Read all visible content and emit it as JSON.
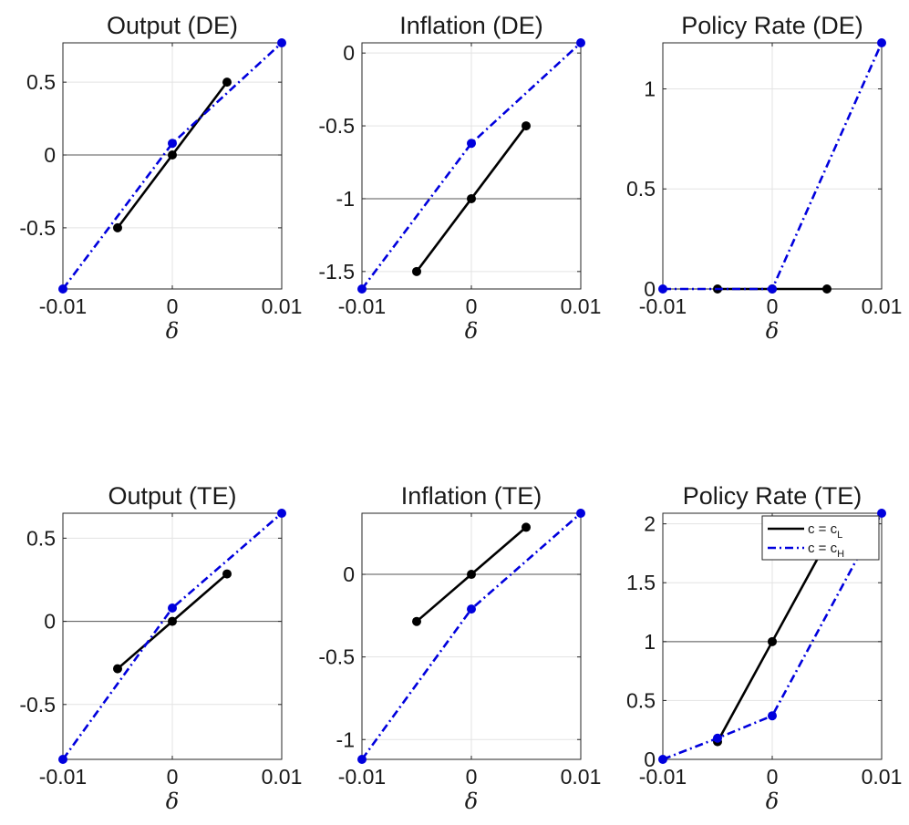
{
  "chart_data": [
    {
      "type": "line",
      "title": "Output (DE)",
      "xlabel": "δ",
      "xlim": [
        -0.01,
        0.01
      ],
      "xticks": [
        -0.01,
        0,
        0.01
      ],
      "xtick_labels": [
        "-0.01",
        "0",
        "0.01"
      ],
      "ylim": [
        -0.92,
        0.77
      ],
      "yticks": [
        -0.5,
        0,
        0.5
      ],
      "ytick_labels": [
        "-0.5",
        "0",
        "0.5"
      ],
      "ref_line": 0,
      "grid": true,
      "series": [
        {
          "name": "c = c_L",
          "color": "#000000",
          "style": "solid",
          "x": [
            -0.005,
            0,
            0.005
          ],
          "y": [
            -0.5,
            0,
            0.5
          ]
        },
        {
          "name": "c = c_H",
          "color": "#0000dd",
          "style": "dashdot",
          "x": [
            -0.01,
            0,
            0.01
          ],
          "y": [
            -0.92,
            0.08,
            0.77
          ]
        }
      ]
    },
    {
      "type": "line",
      "title": "Inflation (DE)",
      "xlabel": "δ",
      "xlim": [
        -0.01,
        0.01
      ],
      "xticks": [
        -0.01,
        0,
        0.01
      ],
      "xtick_labels": [
        "-0.01",
        "0",
        "0.01"
      ],
      "ylim": [
        -1.62,
        0.07
      ],
      "yticks": [
        -1.5,
        -1,
        -0.5,
        0
      ],
      "ytick_labels": [
        "-1.5",
        "-1",
        "-0.5",
        "0"
      ],
      "ref_line": -1,
      "grid": true,
      "series": [
        {
          "name": "c = c_L",
          "color": "#000000",
          "style": "solid",
          "x": [
            -0.005,
            0,
            0.005
          ],
          "y": [
            -1.5,
            -1,
            -0.5
          ]
        },
        {
          "name": "c = c_H",
          "color": "#0000dd",
          "style": "dashdot",
          "x": [
            -0.01,
            0,
            0.01
          ],
          "y": [
            -1.62,
            -0.62,
            0.07
          ]
        }
      ]
    },
    {
      "type": "line",
      "title": "Policy Rate (DE)",
      "xlabel": "δ",
      "xlim": [
        -0.01,
        0.01
      ],
      "xticks": [
        -0.01,
        0,
        0.01
      ],
      "xtick_labels": [
        "-0.01",
        "0",
        "0.01"
      ],
      "ylim": [
        0,
        1.23
      ],
      "yticks": [
        0,
        0.5,
        1
      ],
      "ytick_labels": [
        "0",
        "0.5",
        "1"
      ],
      "ref_line": 0,
      "grid": true,
      "series": [
        {
          "name": "c = c_L",
          "color": "#000000",
          "style": "solid",
          "x": [
            -0.005,
            0,
            0.005
          ],
          "y": [
            0,
            0,
            0
          ]
        },
        {
          "name": "c = c_H",
          "color": "#0000dd",
          "style": "dashdot",
          "x": [
            -0.01,
            0,
            0.01
          ],
          "y": [
            0,
            0,
            1.23
          ]
        }
      ]
    },
    {
      "type": "line",
      "title": "Output (TE)",
      "xlabel": "δ",
      "xlim": [
        -0.01,
        0.01
      ],
      "xticks": [
        -0.01,
        0,
        0.01
      ],
      "xtick_labels": [
        "-0.01",
        "0",
        "0.01"
      ],
      "ylim": [
        -0.83,
        0.65
      ],
      "yticks": [
        -0.5,
        0,
        0.5
      ],
      "ytick_labels": [
        "-0.5",
        "0",
        "0.5"
      ],
      "ref_line": 0,
      "grid": true,
      "series": [
        {
          "name": "c = c_L",
          "color": "#000000",
          "style": "solid",
          "x": [
            -0.005,
            0,
            0.005
          ],
          "y": [
            -0.285,
            0,
            0.285
          ]
        },
        {
          "name": "c = c_H",
          "color": "#0000dd",
          "style": "dashdot",
          "x": [
            -0.01,
            0,
            0.01
          ],
          "y": [
            -0.83,
            0.08,
            0.65
          ]
        }
      ]
    },
    {
      "type": "line",
      "title": "Inflation (TE)",
      "xlabel": "δ",
      "xlim": [
        -0.01,
        0.01
      ],
      "xticks": [
        -0.01,
        0,
        0.01
      ],
      "xtick_labels": [
        "-0.01",
        "0",
        "0.01"
      ],
      "ylim": [
        -1.12,
        0.37
      ],
      "yticks": [
        -1,
        -0.5,
        0
      ],
      "ytick_labels": [
        "-1",
        "-0.5",
        "0"
      ],
      "ref_line": 0,
      "grid": true,
      "series": [
        {
          "name": "c = c_L",
          "color": "#000000",
          "style": "solid",
          "x": [
            -0.005,
            0,
            0.005
          ],
          "y": [
            -0.285,
            0,
            0.285
          ]
        },
        {
          "name": "c = c_H",
          "color": "#0000dd",
          "style": "dashdot",
          "x": [
            -0.01,
            0,
            0.01
          ],
          "y": [
            -1.12,
            -0.21,
            0.37
          ]
        }
      ]
    },
    {
      "type": "line",
      "title": "Policy Rate (TE)",
      "xlabel": "δ",
      "xlim": [
        -0.01,
        0.01
      ],
      "xticks": [
        -0.01,
        0,
        0.01
      ],
      "xtick_labels": [
        "-0.01",
        "0",
        "0.01"
      ],
      "ylim": [
        0,
        2.09
      ],
      "yticks": [
        0,
        0.5,
        1,
        1.5,
        2
      ],
      "ytick_labels": [
        "0",
        "0.5",
        "1",
        "1.5",
        "2"
      ],
      "ref_line": 1,
      "grid": true,
      "legend": {
        "placement": "top-right",
        "entries": [
          {
            "text": "c = c",
            "subscript": "L",
            "color": "#000000",
            "style": "solid"
          },
          {
            "text": "c = c",
            "subscript": "H",
            "color": "#0000dd",
            "style": "dashdot"
          }
        ]
      },
      "series": [
        {
          "name": "c = c_L",
          "color": "#000000",
          "style": "solid",
          "x": [
            -0.005,
            0,
            0.005
          ],
          "y": [
            0.15,
            1,
            1.85
          ]
        },
        {
          "name": "c = c_H",
          "color": "#0000dd",
          "style": "dashdot",
          "x": [
            -0.01,
            -0.005,
            0,
            0.01
          ],
          "y": [
            0,
            0.18,
            0.37,
            2.09
          ]
        }
      ]
    }
  ]
}
